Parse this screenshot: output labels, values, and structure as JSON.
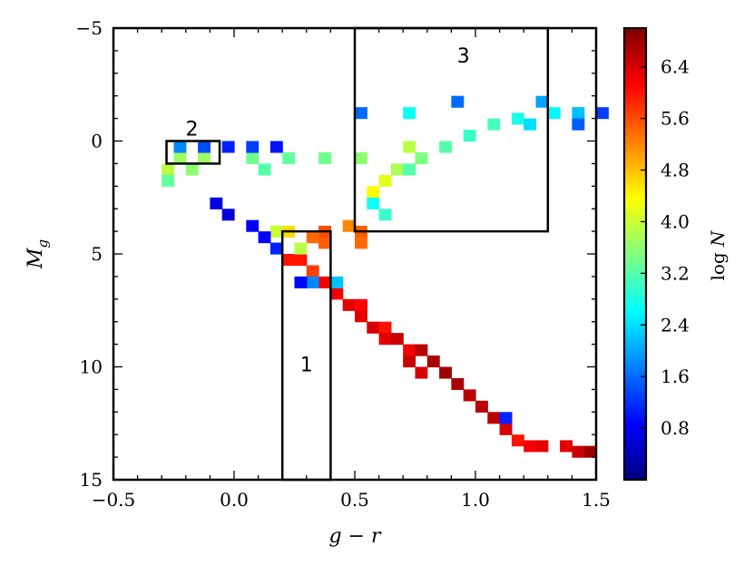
{
  "chart_data": {
    "type": "heatmap",
    "title": "",
    "xlabel": "g − r",
    "ylabel": "M_g",
    "xlim": [
      -0.5,
      1.5
    ],
    "ylim": [
      15,
      -5
    ],
    "y_inverted": true,
    "x_ticks": [
      "−0.5",
      "0.0",
      "0.5",
      "1.0",
      "1.5"
    ],
    "y_ticks": [
      "−5",
      "0",
      "5",
      "10",
      "15"
    ],
    "x_tick_values": [
      -0.5,
      0.0,
      0.5,
      1.0,
      1.5
    ],
    "y_tick_values": [
      -5,
      0,
      5,
      10,
      15
    ],
    "grid": false,
    "colorbar": {
      "label": "log N",
      "range": [
        0.0,
        7.0
      ],
      "ticks": [
        "0.8",
        "1.6",
        "2.4",
        "3.2",
        "4.0",
        "4.8",
        "5.6",
        "6.4"
      ],
      "tick_values": [
        0.8,
        1.6,
        2.4,
        3.2,
        4.0,
        4.8,
        5.6,
        6.4
      ],
      "colormap": "jet"
    },
    "bin_size": {
      "dx": 0.05,
      "dy": 0.5
    },
    "cells": [
      [
        0.45,
        3.5,
        5.2
      ],
      [
        0.5,
        3.75,
        5.5
      ],
      [
        0.5,
        4.25,
        5.4
      ],
      [
        0.2,
        5.0,
        6.0
      ],
      [
        0.25,
        5.0,
        6.0
      ],
      [
        0.3,
        5.5,
        5.7
      ],
      [
        0.35,
        6.0,
        6.2
      ],
      [
        0.4,
        6.5,
        6.2
      ],
      [
        0.45,
        7.0,
        6.3
      ],
      [
        0.5,
        7.0,
        6.1
      ],
      [
        0.5,
        7.5,
        6.3
      ],
      [
        0.55,
        8.0,
        6.4
      ],
      [
        0.6,
        8.0,
        6.0
      ],
      [
        0.6,
        8.5,
        6.3
      ],
      [
        0.65,
        8.5,
        6.5
      ],
      [
        0.7,
        9.0,
        6.2
      ],
      [
        0.7,
        9.5,
        6.5
      ],
      [
        0.75,
        9.0,
        6.6
      ],
      [
        0.75,
        10.0,
        6.4
      ],
      [
        0.8,
        9.5,
        6.7
      ],
      [
        0.85,
        10.0,
        6.8
      ],
      [
        0.9,
        10.5,
        6.7
      ],
      [
        0.95,
        11.0,
        6.6
      ],
      [
        1.0,
        11.5,
        6.6
      ],
      [
        1.05,
        12.0,
        6.6
      ],
      [
        1.1,
        12.5,
        6.4
      ],
      [
        1.15,
        13.0,
        6.0
      ],
      [
        1.2,
        13.25,
        6.2
      ],
      [
        1.25,
        13.25,
        6.3
      ],
      [
        1.35,
        13.25,
        6.3
      ],
      [
        1.4,
        13.5,
        6.5
      ],
      [
        1.45,
        13.5,
        6.8
      ],
      [
        0.35,
        3.75,
        5.6
      ],
      [
        0.35,
        4.25,
        5.5
      ],
      [
        0.3,
        4.0,
        5.4
      ],
      [
        0.2,
        3.75,
        4.6
      ],
      [
        0.15,
        3.75,
        4.0
      ],
      [
        0.25,
        4.5,
        3.9
      ],
      [
        0.3,
        6.0,
        1.8
      ],
      [
        0.4,
        6.0,
        2.2
      ],
      [
        0.55,
        2.0,
        4.4
      ],
      [
        0.6,
        1.5,
        4.2
      ],
      [
        0.65,
        1.0,
        3.8
      ],
      [
        0.75,
        0.5,
        3.5
      ],
      [
        0.85,
        0.0,
        3.2
      ],
      [
        0.95,
        -0.5,
        3.0
      ],
      [
        1.05,
        -1.0,
        3.1
      ],
      [
        1.15,
        -1.25,
        2.8
      ],
      [
        1.3,
        -1.5,
        2.6
      ],
      [
        1.4,
        -1.5,
        2.2
      ],
      [
        1.5,
        -1.5,
        1.3
      ],
      [
        1.4,
        -1.0,
        1.5
      ],
      [
        1.2,
        -1.0,
        2.4
      ],
      [
        1.25,
        -2.0,
        2.0
      ],
      [
        0.9,
        -2.0,
        1.6
      ],
      [
        0.5,
        -1.5,
        1.6
      ],
      [
        0.7,
        -1.5,
        2.7
      ],
      [
        0.7,
        0.0,
        3.9
      ],
      [
        0.7,
        1.0,
        3.2
      ],
      [
        0.6,
        3.0,
        3.0
      ],
      [
        0.55,
        2.5,
        2.7
      ],
      [
        -0.25,
        0.5,
        3.7
      ],
      [
        -0.15,
        0.5,
        3.7
      ],
      [
        0.05,
        0.5,
        3.4
      ],
      [
        0.2,
        0.5,
        3.3
      ],
      [
        0.35,
        0.5,
        3.4
      ],
      [
        0.5,
        0.5,
        3.6
      ],
      [
        0.1,
        1.0,
        3.2
      ],
      [
        -0.2,
        1.0,
        3.6
      ],
      [
        -0.3,
        1.0,
        3.9
      ],
      [
        -0.3,
        1.5,
        3.3
      ],
      [
        -0.25,
        0.0,
        1.8
      ],
      [
        -0.15,
        0.0,
        1.4
      ],
      [
        -0.05,
        0.0,
        1.1
      ],
      [
        0.05,
        0.0,
        1.3
      ],
      [
        0.15,
        0.0,
        1.0
      ],
      [
        -0.1,
        2.5,
        0.7
      ],
      [
        -0.05,
        3.0,
        0.6
      ],
      [
        0.05,
        3.5,
        0.8
      ],
      [
        0.1,
        4.0,
        0.9
      ],
      [
        0.15,
        4.5,
        1.1
      ],
      [
        0.25,
        6.0,
        0.9
      ],
      [
        1.1,
        12.0,
        1.1
      ]
    ],
    "annotations": [
      {
        "label": "1",
        "x": [
          0.2,
          0.4
        ],
        "y": [
          4.0,
          15.0
        ]
      },
      {
        "label": "2",
        "x": [
          -0.28,
          -0.06
        ],
        "y": [
          0.0,
          1.0
        ]
      },
      {
        "label": "3",
        "x": [
          0.5,
          1.3
        ],
        "y": [
          -5.0,
          4.0
        ]
      }
    ]
  }
}
